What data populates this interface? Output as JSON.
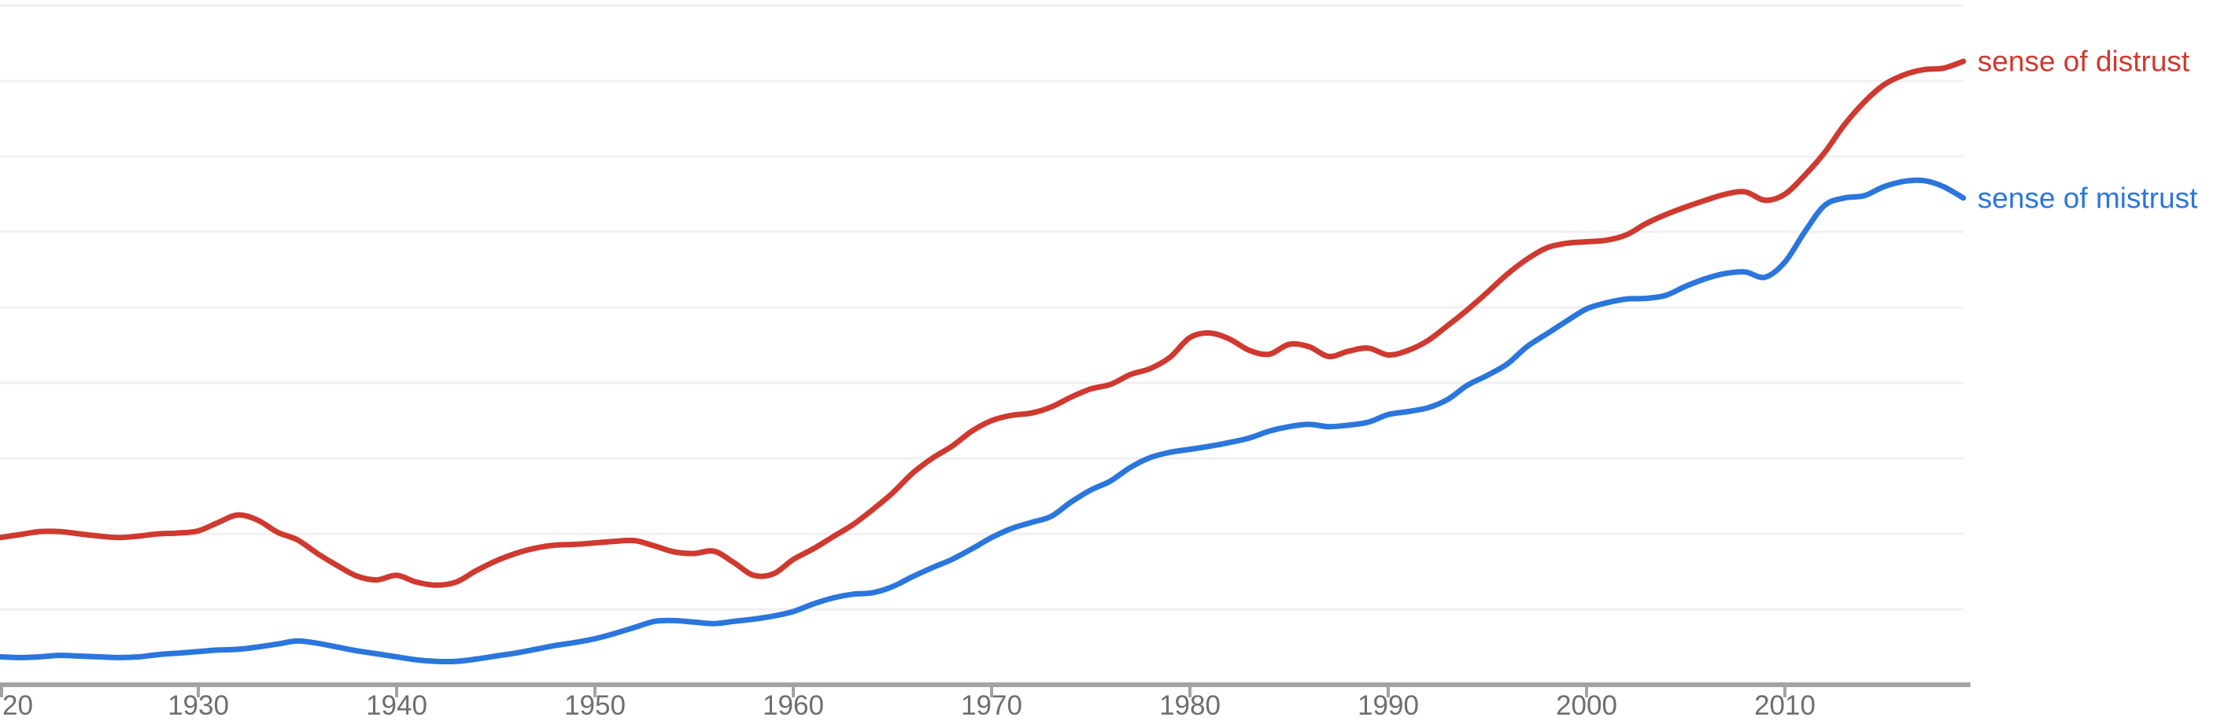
{
  "chart_data": {
    "type": "line",
    "title": "",
    "xlabel": "",
    "ylabel": "",
    "grid": "horizontal",
    "legend": "inline-right-of-line-end",
    "x_start": 1920,
    "x_end": 2019,
    "x_tick_step": 10,
    "x_ticks": [
      {
        "year": 1920,
        "label": "20",
        "clipped": true
      },
      {
        "year": 1930,
        "label": "1930",
        "clipped": false
      },
      {
        "year": 1940,
        "label": "1940",
        "clipped": false
      },
      {
        "year": 1950,
        "label": "1950",
        "clipped": false
      },
      {
        "year": 1960,
        "label": "1960",
        "clipped": false
      },
      {
        "year": 1970,
        "label": "1970",
        "clipped": false
      },
      {
        "year": 1980,
        "label": "1980",
        "clipped": false
      },
      {
        "year": 1990,
        "label": "1990",
        "clipped": false
      },
      {
        "year": 2000,
        "label": "2000",
        "clipped": false
      },
      {
        "year": 2010,
        "label": "2010",
        "clipped": false
      }
    ],
    "ylim": [
      0,
      9.1
    ],
    "gridline_step": 1,
    "y_unit": "gridline units (y-axis value labels are cropped out of the screenshot)",
    "x": [
      1920,
      1921,
      1922,
      1923,
      1924,
      1925,
      1926,
      1927,
      1928,
      1929,
      1930,
      1931,
      1932,
      1933,
      1934,
      1935,
      1936,
      1937,
      1938,
      1939,
      1940,
      1941,
      1942,
      1943,
      1944,
      1945,
      1946,
      1947,
      1948,
      1949,
      1950,
      1951,
      1952,
      1953,
      1954,
      1955,
      1956,
      1957,
      1958,
      1959,
      1960,
      1961,
      1962,
      1963,
      1964,
      1965,
      1966,
      1967,
      1968,
      1969,
      1970,
      1971,
      1972,
      1973,
      1974,
      1975,
      1976,
      1977,
      1978,
      1979,
      1980,
      1981,
      1982,
      1983,
      1984,
      1985,
      1986,
      1987,
      1988,
      1989,
      1990,
      1991,
      1992,
      1993,
      1994,
      1995,
      1996,
      1997,
      1998,
      1999,
      2000,
      2001,
      2002,
      2003,
      2004,
      2005,
      2006,
      2007,
      2008,
      2009,
      2010,
      2011,
      2012,
      2013,
      2014,
      2015,
      2016,
      2017,
      2018,
      2019
    ],
    "series": [
      {
        "name": "sense of distrust",
        "color": "#d0392f",
        "values": [
          1.95,
          1.99,
          2.03,
          2.03,
          2.0,
          1.97,
          1.95,
          1.97,
          2.0,
          2.01,
          2.04,
          2.15,
          2.25,
          2.18,
          2.02,
          1.92,
          1.74,
          1.58,
          1.44,
          1.39,
          1.45,
          1.36,
          1.32,
          1.36,
          1.51,
          1.64,
          1.74,
          1.81,
          1.85,
          1.86,
          1.88,
          1.9,
          1.91,
          1.84,
          1.76,
          1.74,
          1.77,
          1.62,
          1.45,
          1.47,
          1.66,
          1.8,
          1.96,
          2.12,
          2.32,
          2.54,
          2.8,
          3.0,
          3.16,
          3.36,
          3.5,
          3.57,
          3.6,
          3.68,
          3.81,
          3.92,
          3.98,
          4.11,
          4.19,
          4.34,
          4.6,
          4.66,
          4.58,
          4.43,
          4.38,
          4.51,
          4.48,
          4.35,
          4.42,
          4.46,
          4.37,
          4.43,
          4.56,
          4.76,
          4.97,
          5.2,
          5.44,
          5.64,
          5.79,
          5.85,
          5.87,
          5.89,
          5.96,
          6.11,
          6.23,
          6.33,
          6.42,
          6.5,
          6.53,
          6.42,
          6.5,
          6.75,
          7.05,
          7.42,
          7.72,
          7.95,
          8.08,
          8.15,
          8.17,
          8.26
        ]
      },
      {
        "name": "sense of mistrust",
        "color": "#2b76dd",
        "values": [
          0.37,
          0.36,
          0.37,
          0.39,
          0.38,
          0.37,
          0.36,
          0.37,
          0.4,
          0.42,
          0.44,
          0.46,
          0.47,
          0.5,
          0.54,
          0.58,
          0.55,
          0.5,
          0.45,
          0.41,
          0.37,
          0.33,
          0.31,
          0.31,
          0.34,
          0.38,
          0.42,
          0.47,
          0.52,
          0.56,
          0.61,
          0.68,
          0.76,
          0.84,
          0.85,
          0.83,
          0.81,
          0.84,
          0.87,
          0.91,
          0.97,
          1.07,
          1.15,
          1.2,
          1.22,
          1.3,
          1.43,
          1.55,
          1.66,
          1.8,
          1.95,
          2.07,
          2.15,
          2.23,
          2.42,
          2.58,
          2.7,
          2.88,
          3.01,
          3.08,
          3.12,
          3.16,
          3.21,
          3.27,
          3.36,
          3.42,
          3.45,
          3.42,
          3.44,
          3.48,
          3.58,
          3.62,
          3.67,
          3.78,
          3.97,
          4.1,
          4.25,
          4.48,
          4.65,
          4.82,
          4.98,
          5.06,
          5.11,
          5.12,
          5.16,
          5.28,
          5.38,
          5.45,
          5.47,
          5.4,
          5.6,
          6.0,
          6.35,
          6.45,
          6.48,
          6.6,
          6.67,
          6.68,
          6.6,
          6.45
        ]
      }
    ],
    "colors": {
      "background": "#ffffff",
      "gridline": "#f0f0f0",
      "axis": "#a3a3a3",
      "tick": "#a3a3a3",
      "tick_label": "#6e6e6e"
    }
  }
}
